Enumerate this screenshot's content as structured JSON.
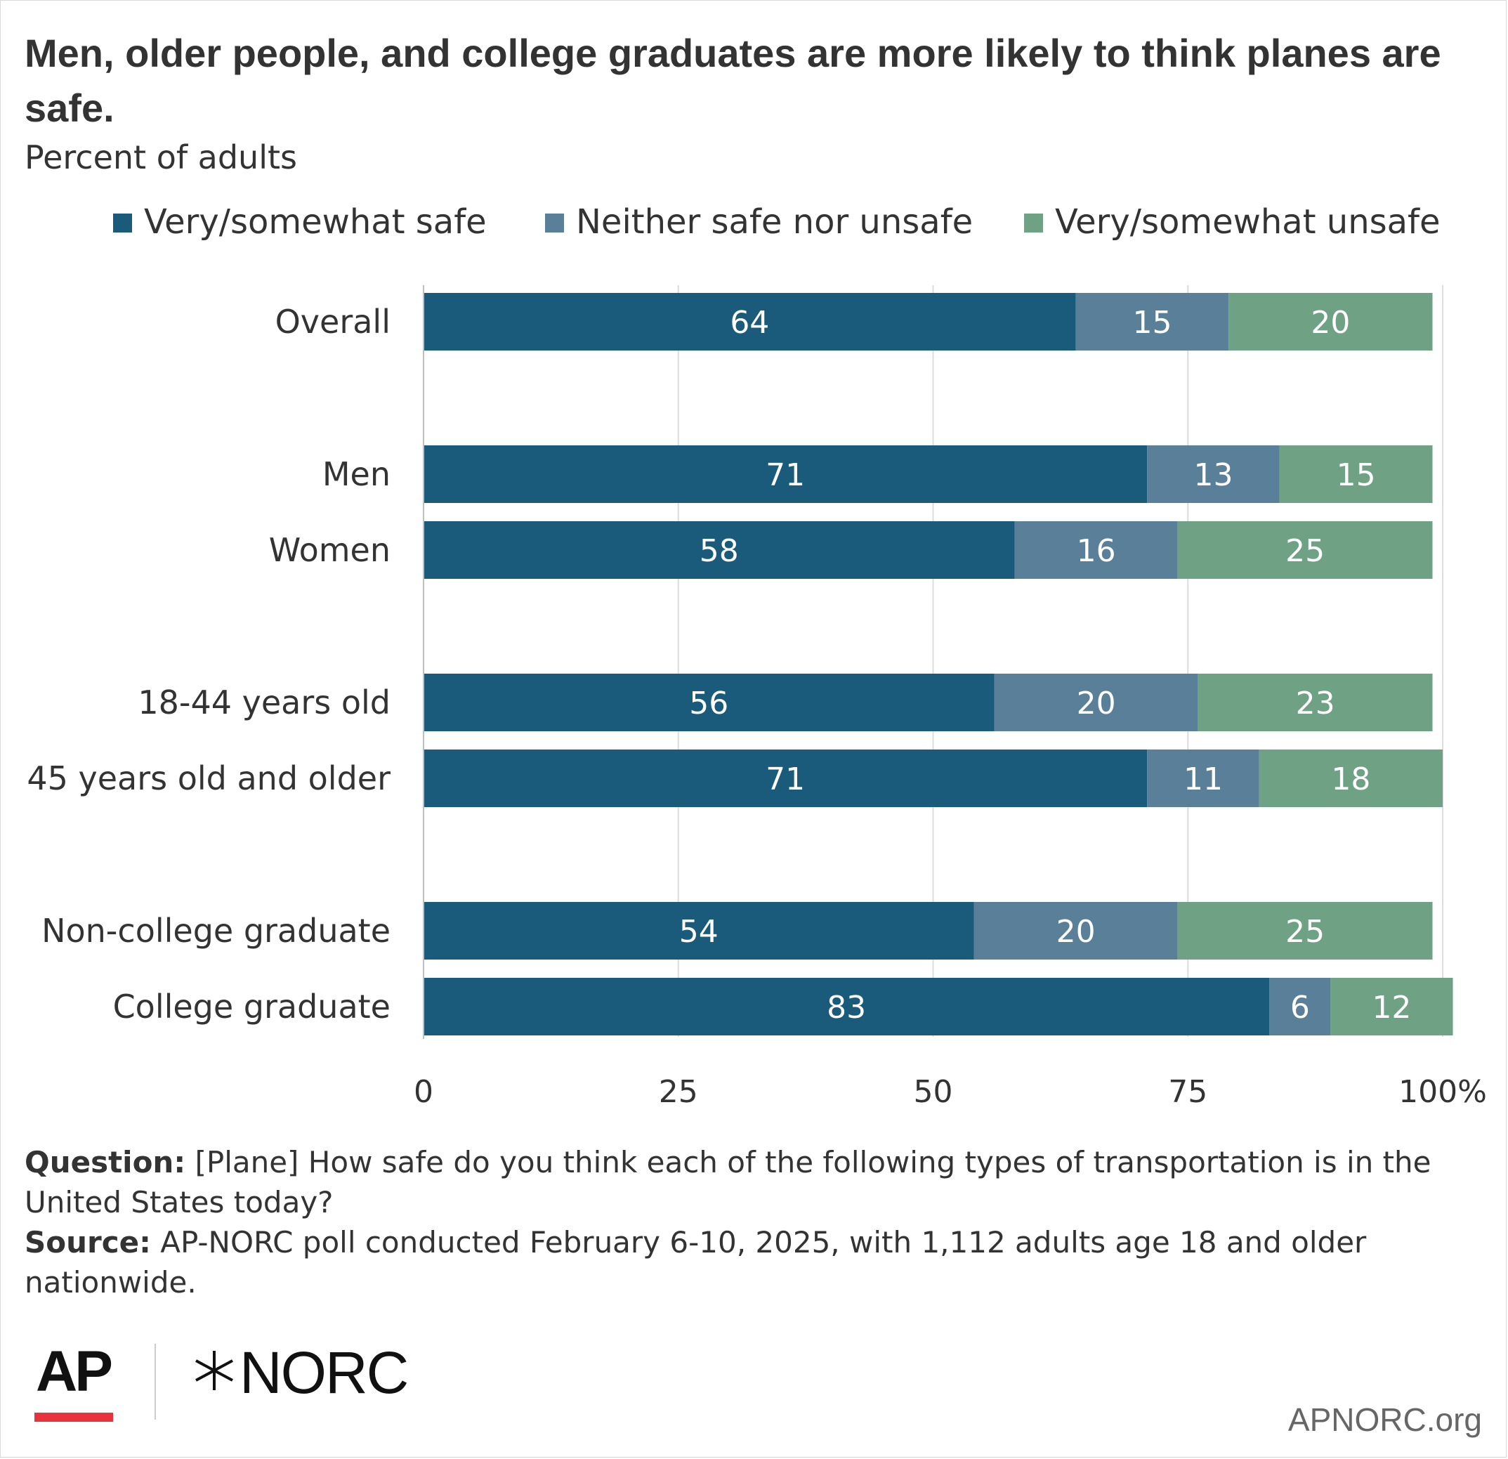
{
  "title": "Men, older people, and college graduates are more likely to think planes are safe.",
  "subtitle": "Percent of adults",
  "legend": [
    {
      "label": "Very/somewhat safe",
      "color": "#1a5a7a"
    },
    {
      "label": "Neither safe nor unsafe",
      "color": "#5a7f98"
    },
    {
      "label": "Very/somewhat unsafe",
      "color": "#6fa285"
    }
  ],
  "chart_data": {
    "type": "bar",
    "orientation": "horizontal",
    "stacked": true,
    "categories": [
      "Overall",
      "Men",
      "Women",
      "18-44 years old",
      "45 years old and older",
      "Non-college graduate",
      "College graduate"
    ],
    "groups": [
      [
        0
      ],
      [
        1,
        2
      ],
      [
        3,
        4
      ],
      [
        5,
        6
      ]
    ],
    "series": [
      {
        "name": "Very/somewhat safe",
        "color": "#1a5a7a",
        "values": [
          64,
          71,
          58,
          56,
          71,
          54,
          83
        ]
      },
      {
        "name": "Neither safe nor unsafe",
        "color": "#5a7f98",
        "values": [
          15,
          13,
          16,
          20,
          11,
          20,
          6
        ]
      },
      {
        "name": "Very/somewhat unsafe",
        "color": "#6fa285",
        "values": [
          20,
          15,
          25,
          23,
          18,
          25,
          12
        ]
      }
    ],
    "xlim": [
      0,
      100
    ],
    "xticks": [
      "0",
      "25",
      "50",
      "75",
      "100%"
    ],
    "grid": true,
    "legend_position": "top"
  },
  "notes": [
    {
      "key": "Question:",
      "text": " [Plane] How safe do you think each of the following types of transportation is in the United States today?"
    },
    {
      "key": "Source:",
      "text": " AP-NORC poll conducted February 6-10, 2025, with 1,112 adults age 18 and older nationwide."
    }
  ],
  "logos": {
    "ap": "AP",
    "norc": "NORC"
  },
  "site": "APNORC.org"
}
